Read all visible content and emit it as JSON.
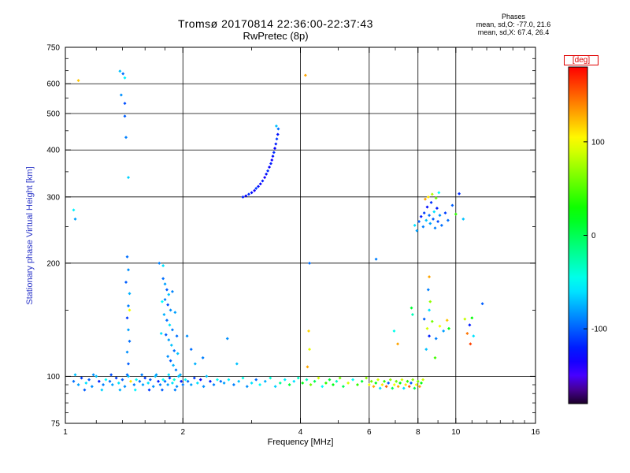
{
  "title": "Tromsø 20170814 22:36:00-22:37:43",
  "subtitle": "RwPretec (8p)",
  "stats": {
    "header": "Phases",
    "line1": "mean, sd,O: -77.0, 21.6",
    "line2": "mean, sd,X:  67.4, 26.4"
  },
  "colors": {
    "ylabel": "#2a35c8",
    "colorbar_label": "#e00000",
    "axis": "#000000"
  },
  "chart_data": {
    "type": "scatter",
    "title": "Tromsø 20170814 22:36:00-22:37:43",
    "subtitle": "RwPretec (8p)",
    "xlabel": "Frequency [MHz]",
    "ylabel": "Stationary phase Virtual Height [km]",
    "xscale": "log",
    "yscale": "log",
    "xlim": [
      1,
      16
    ],
    "ylim": [
      75,
      750
    ],
    "xticks": [
      1,
      2,
      4,
      6,
      8,
      10,
      16
    ],
    "yticks": [
      75,
      100,
      200,
      300,
      400,
      500,
      600,
      750
    ],
    "grid": true,
    "colorbar": {
      "label": "[deg]",
      "ticks": [
        100,
        0,
        -100
      ],
      "range": [
        -180,
        180
      ]
    },
    "points_format": [
      "frequency_MHz",
      "virtual_height_km",
      "phase_deg"
    ],
    "points": [
      [
        1.05,
        97,
        -95
      ],
      [
        1.08,
        95,
        -80
      ],
      [
        1.1,
        99,
        -110
      ],
      [
        1.13,
        96,
        -60
      ],
      [
        1.15,
        98,
        -100
      ],
      [
        1.17,
        94,
        -85
      ],
      [
        1.2,
        100,
        -70
      ],
      [
        1.22,
        97,
        -120
      ],
      [
        1.25,
        95,
        -90
      ],
      [
        1.27,
        98,
        -50
      ],
      [
        1.3,
        97,
        -95
      ],
      [
        1.32,
        95,
        -80
      ],
      [
        1.35,
        99,
        -110
      ],
      [
        1.37,
        96,
        -60
      ],
      [
        1.4,
        98,
        -100
      ],
      [
        1.42,
        94,
        -85
      ],
      [
        1.45,
        100,
        -70
      ],
      [
        1.47,
        97,
        110
      ],
      [
        1.5,
        95,
        -90
      ],
      [
        1.52,
        98,
        -50
      ],
      [
        1.55,
        97,
        -95
      ],
      [
        1.58,
        95,
        -80
      ],
      [
        1.6,
        99,
        -110
      ],
      [
        1.63,
        96,
        -60
      ],
      [
        1.65,
        98,
        -100
      ],
      [
        1.68,
        94,
        -85
      ],
      [
        1.7,
        100,
        -70
      ],
      [
        1.73,
        97,
        -120
      ],
      [
        1.75,
        95,
        -90
      ],
      [
        1.78,
        98,
        -50
      ],
      [
        1.8,
        97,
        -95
      ],
      [
        1.83,
        95,
        -80
      ],
      [
        1.85,
        99,
        -110
      ],
      [
        1.88,
        96,
        -60
      ],
      [
        1.9,
        98,
        -40
      ],
      [
        1.93,
        94,
        -85
      ],
      [
        1.95,
        100,
        -70
      ],
      [
        1.98,
        97,
        -120
      ],
      [
        2.0,
        95,
        -90
      ],
      [
        2.03,
        98,
        -50
      ],
      [
        2.06,
        97,
        -95
      ],
      [
        2.1,
        95,
        -80
      ],
      [
        2.14,
        99,
        -110
      ],
      [
        2.18,
        96,
        -60
      ],
      [
        2.22,
        98,
        -130
      ],
      [
        2.26,
        94,
        -85
      ],
      [
        2.3,
        100,
        -70
      ],
      [
        2.35,
        97,
        -120
      ],
      [
        2.4,
        95,
        -90
      ],
      [
        2.45,
        98,
        -50
      ],
      [
        2.5,
        97,
        -95
      ],
      [
        1.06,
        101,
        -70
      ],
      [
        1.12,
        92,
        -100
      ],
      [
        1.18,
        101,
        -85
      ],
      [
        1.24,
        92,
        -65
      ],
      [
        1.31,
        101,
        -105
      ],
      [
        1.38,
        92,
        -75
      ],
      [
        1.44,
        101,
        -95
      ],
      [
        1.51,
        92,
        -55
      ],
      [
        1.57,
        101,
        -90
      ],
      [
        1.64,
        92,
        -110
      ],
      [
        1.71,
        101,
        -80
      ],
      [
        1.77,
        92,
        -100
      ],
      [
        1.84,
        101,
        -60
      ],
      [
        1.91,
        92,
        -90
      ],
      [
        1.97,
        101,
        -75
      ],
      [
        2.55,
        96,
        -80
      ],
      [
        2.62,
        98,
        -55
      ],
      [
        2.7,
        95,
        -90
      ],
      [
        2.78,
        97,
        -70
      ],
      [
        2.85,
        99,
        -45
      ],
      [
        2.92,
        94,
        -85
      ],
      [
        3.0,
        96,
        -60
      ],
      [
        3.08,
        98,
        -95
      ],
      [
        3.15,
        95,
        -50
      ],
      [
        3.25,
        97,
        -75
      ],
      [
        3.35,
        99,
        -40
      ],
      [
        3.45,
        94,
        -65
      ],
      [
        3.55,
        96,
        -20
      ],
      [
        3.65,
        98,
        -55
      ],
      [
        3.75,
        95,
        10
      ],
      [
        3.85,
        97,
        -60
      ],
      [
        3.95,
        99,
        -35
      ],
      [
        2.6,
        126,
        -85
      ],
      [
        2.75,
        108,
        -70
      ],
      [
        4.05,
        96,
        20
      ],
      [
        4.15,
        98,
        -30
      ],
      [
        4.25,
        95,
        60
      ],
      [
        4.35,
        97,
        0
      ],
      [
        4.45,
        99,
        90
      ],
      [
        4.55,
        94,
        -50
      ],
      [
        4.65,
        96,
        40
      ],
      [
        4.75,
        98,
        10
      ],
      [
        4.85,
        95,
        20
      ],
      [
        4.95,
        97,
        -30
      ],
      [
        5.05,
        99,
        60
      ],
      [
        5.15,
        94,
        0
      ],
      [
        5.3,
        96,
        90
      ],
      [
        5.45,
        98,
        -50
      ],
      [
        5.6,
        95,
        40
      ],
      [
        5.75,
        97,
        10
      ],
      [
        5.9,
        99,
        70
      ],
      [
        6.0,
        95,
        100
      ],
      [
        6.08,
        97,
        60
      ],
      [
        6.16,
        94,
        130
      ],
      [
        6.24,
        96,
        20
      ],
      [
        6.32,
        98,
        90
      ],
      [
        6.4,
        93,
        -60
      ],
      [
        6.48,
        95,
        110
      ],
      [
        6.56,
        97,
        40
      ],
      [
        6.64,
        94,
        150
      ],
      [
        6.72,
        96,
        -100
      ],
      [
        6.8,
        98,
        70
      ],
      [
        6.88,
        93,
        0
      ],
      [
        6.96,
        95,
        100
      ],
      [
        7.04,
        97,
        60
      ],
      [
        7.12,
        94,
        130
      ],
      [
        7.2,
        96,
        20
      ],
      [
        7.28,
        98,
        90
      ],
      [
        7.36,
        93,
        -60
      ],
      [
        7.44,
        95,
        110
      ],
      [
        7.52,
        97,
        40
      ],
      [
        7.6,
        94,
        150
      ],
      [
        7.68,
        96,
        -100
      ],
      [
        7.76,
        98,
        70
      ],
      [
        7.84,
        93,
        0
      ],
      [
        7.92,
        95,
        100
      ],
      [
        8.0,
        97,
        60
      ],
      [
        8.08,
        94,
        130
      ],
      [
        8.16,
        96,
        20
      ],
      [
        8.24,
        98,
        90
      ],
      [
        1.08,
        612,
        120
      ],
      [
        1.38,
        648,
        -70
      ],
      [
        1.405,
        638,
        -95
      ],
      [
        1.42,
        622,
        -55
      ],
      [
        1.39,
        560,
        -85
      ],
      [
        1.42,
        532,
        -105
      ],
      [
        1.42,
        492,
        -100
      ],
      [
        1.43,
        432,
        -90
      ],
      [
        1.45,
        338,
        -65
      ],
      [
        1.44,
        208,
        -95
      ],
      [
        1.45,
        192,
        -85
      ],
      [
        1.43,
        178,
        -100
      ],
      [
        1.46,
        166,
        -75
      ],
      [
        1.45,
        154,
        -90
      ],
      [
        1.44,
        143,
        -110
      ],
      [
        1.45,
        133,
        -80
      ],
      [
        1.46,
        124,
        -95
      ],
      [
        1.44,
        116,
        -85
      ],
      [
        1.45,
        108,
        -100
      ],
      [
        1.46,
        150,
        100
      ],
      [
        1.05,
        277,
        -55
      ],
      [
        1.06,
        262,
        -80
      ],
      [
        1.78,
        182,
        -95
      ],
      [
        1.8,
        176,
        -80
      ],
      [
        1.82,
        170,
        -100
      ],
      [
        1.84,
        165,
        -70
      ],
      [
        1.8,
        160,
        -90
      ],
      [
        1.83,
        155,
        -105
      ],
      [
        1.86,
        150,
        -85
      ],
      [
        1.79,
        146,
        -75
      ],
      [
        1.82,
        141,
        -95
      ],
      [
        1.85,
        137,
        -60
      ],
      [
        1.88,
        133,
        -90
      ],
      [
        1.81,
        129,
        -100
      ],
      [
        1.84,
        125,
        -80
      ],
      [
        1.87,
        121,
        -70
      ],
      [
        1.9,
        117,
        -95
      ],
      [
        1.83,
        113,
        -85
      ],
      [
        1.86,
        110,
        -100
      ],
      [
        1.89,
        107,
        -75
      ],
      [
        1.92,
        104,
        -90
      ],
      [
        1.77,
        158,
        -50
      ],
      [
        1.76,
        130,
        -60
      ],
      [
        1.91,
        148,
        -80
      ],
      [
        1.93,
        128,
        -95
      ],
      [
        1.88,
        168,
        -88
      ],
      [
        1.94,
        115,
        -70
      ],
      [
        1.74,
        200,
        -90
      ],
      [
        1.78,
        197,
        -60
      ],
      [
        2.05,
        128,
        -85
      ],
      [
        2.1,
        118,
        -95
      ],
      [
        2.15,
        108,
        -75
      ],
      [
        2.25,
        112,
        -90
      ],
      [
        2.85,
        300,
        -120
      ],
      [
        2.9,
        302,
        -130
      ],
      [
        2.95,
        305,
        -115
      ],
      [
        3.0,
        308,
        -125
      ],
      [
        3.05,
        312,
        -135
      ],
      [
        3.08,
        316,
        -110
      ],
      [
        3.12,
        320,
        -125
      ],
      [
        3.16,
        325,
        -130
      ],
      [
        3.2,
        331,
        -120
      ],
      [
        3.24,
        338,
        -135
      ],
      [
        3.27,
        345,
        -125
      ],
      [
        3.3,
        352,
        -115
      ],
      [
        3.33,
        360,
        -130
      ],
      [
        3.36,
        368,
        -120
      ],
      [
        3.38,
        376,
        -135
      ],
      [
        3.4,
        385,
        -125
      ],
      [
        3.42,
        394,
        -115
      ],
      [
        3.44,
        404,
        -130
      ],
      [
        3.46,
        415,
        -120
      ],
      [
        3.48,
        428,
        -110
      ],
      [
        3.5,
        440,
        -125
      ],
      [
        3.51,
        455,
        -95
      ],
      [
        3.47,
        463,
        -70
      ],
      [
        4.12,
        632,
        130
      ],
      [
        4.22,
        200,
        -95
      ],
      [
        4.2,
        132,
        115
      ],
      [
        4.22,
        118,
        95
      ],
      [
        4.17,
        106,
        130
      ],
      [
        6.25,
        205,
        -90
      ],
      [
        7.1,
        122,
        130
      ],
      [
        6.95,
        132,
        -45
      ],
      [
        7.7,
        152,
        10
      ],
      [
        7.75,
        146,
        -30
      ],
      [
        11.7,
        156,
        -100
      ],
      [
        7.85,
        252,
        -60
      ],
      [
        7.95,
        244,
        -80
      ],
      [
        8.05,
        258,
        -100
      ],
      [
        8.15,
        266,
        -120
      ],
      [
        8.25,
        250,
        -90
      ],
      [
        8.3,
        272,
        -110
      ],
      [
        8.4,
        260,
        -70
      ],
      [
        8.45,
        282,
        -125
      ],
      [
        8.55,
        268,
        -95
      ],
      [
        8.6,
        255,
        -80
      ],
      [
        8.65,
        290,
        -115
      ],
      [
        8.75,
        262,
        -100
      ],
      [
        8.8,
        274,
        -60
      ],
      [
        8.85,
        248,
        -90
      ],
      [
        8.95,
        280,
        -120
      ],
      [
        9.0,
        258,
        -105
      ],
      [
        9.1,
        268,
        -85
      ],
      [
        9.2,
        252,
        -95
      ],
      [
        8.5,
        300,
        110
      ],
      [
        8.7,
        305,
        80
      ],
      [
        8.35,
        296,
        130
      ],
      [
        8.9,
        298,
        60
      ],
      [
        9.05,
        308,
        -50
      ],
      [
        9.4,
        272,
        -110
      ],
      [
        9.55,
        260,
        -95
      ],
      [
        10.2,
        306,
        -115
      ],
      [
        10.45,
        262,
        -70
      ],
      [
        9.8,
        285,
        -100
      ],
      [
        10.0,
        270,
        40
      ],
      [
        8.3,
        142,
        -100
      ],
      [
        8.45,
        134,
        90
      ],
      [
        8.55,
        128,
        -120
      ],
      [
        8.7,
        140,
        60
      ],
      [
        8.9,
        126,
        -90
      ],
      [
        9.1,
        136,
        100
      ],
      [
        8.4,
        118,
        -70
      ],
      [
        8.85,
        112,
        45
      ],
      [
        9.3,
        132,
        -80
      ],
      [
        9.5,
        141,
        120
      ],
      [
        9.6,
        134,
        20
      ],
      [
        8.55,
        184,
        130
      ],
      [
        8.5,
        170,
        -90
      ],
      [
        8.6,
        158,
        70
      ],
      [
        8.55,
        150,
        -60
      ],
      [
        10.55,
        142,
        85
      ],
      [
        10.7,
        130,
        145
      ],
      [
        10.85,
        137,
        -120
      ],
      [
        11.0,
        143,
        25
      ],
      [
        11.1,
        128,
        -60
      ],
      [
        10.9,
        122,
        160
      ]
    ]
  }
}
